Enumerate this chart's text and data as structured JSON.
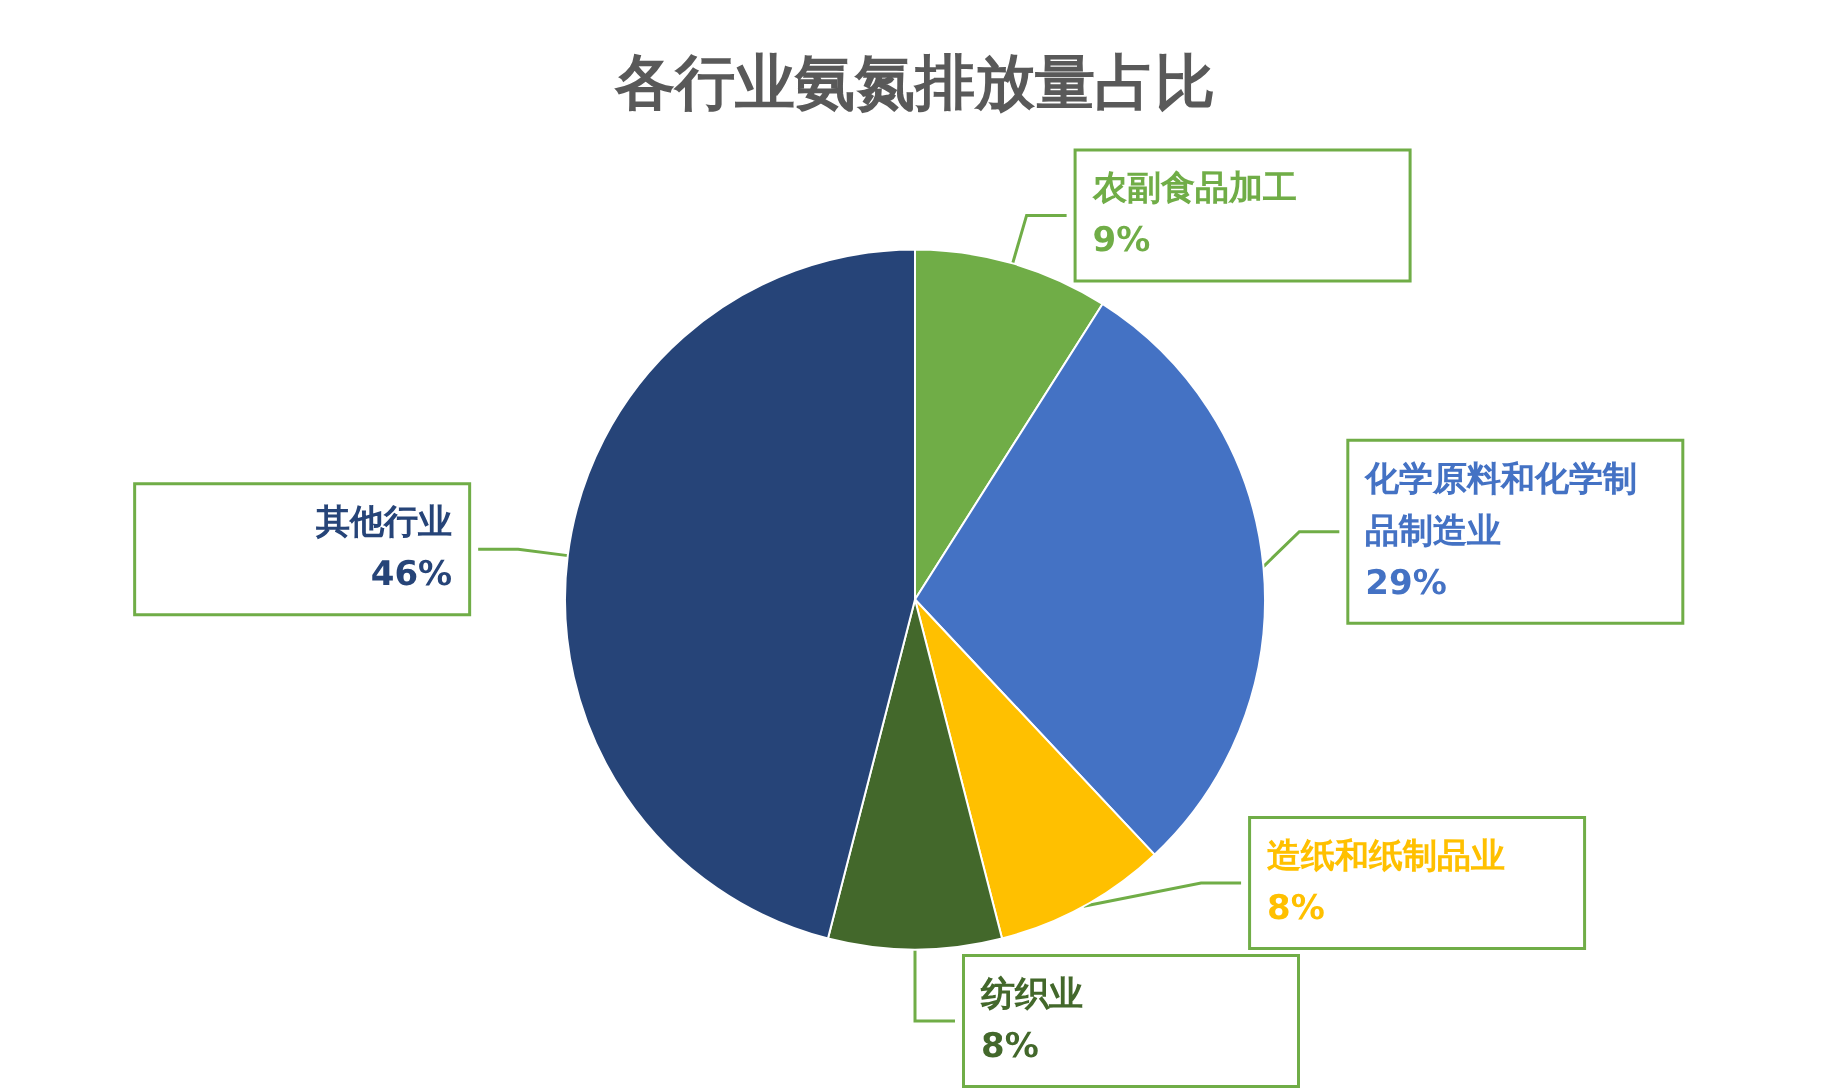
{
  "chart_data": {
    "type": "pie",
    "title": "各行业氨氮排放量占比",
    "categories": [
      "农副食品加工",
      "化学原料和化学制品制造业",
      "造纸和纸制品业",
      "纺织业",
      "其他行业"
    ],
    "values": [
      9,
      29,
      8,
      8,
      46
    ],
    "value_labels": [
      "9%",
      "29%",
      "8%",
      "8%",
      "46%"
    ],
    "colors": [
      "#70ad47",
      "#4472c4",
      "#ffc000",
      "#43682b",
      "#264478"
    ]
  }
}
